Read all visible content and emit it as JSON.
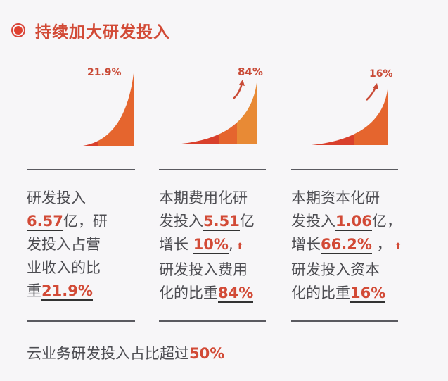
{
  "header": {
    "title": "持续加大研发投入"
  },
  "colors": {
    "accent": "#d24a36",
    "segment_dark": "#d9402c",
    "segment_mid": "#e5652e",
    "segment_light": "#e88a35",
    "rule": "#5a5a60",
    "text": "#4d4d52",
    "background": "#f7f6f8"
  },
  "columns": [
    {
      "chart_label": "21.9%",
      "lines": [
        {
          "parts": [
            {
              "t": "研发投入"
            }
          ]
        },
        {
          "parts": [
            {
              "t": "6.57",
              "hl": true
            },
            {
              "t": "亿，研"
            }
          ]
        },
        {
          "parts": [
            {
              "t": "发投入占营"
            }
          ]
        },
        {
          "parts": [
            {
              "t": "业收入的比"
            }
          ]
        },
        {
          "parts": [
            {
              "t": "重"
            },
            {
              "t": "21.9%",
              "hl": true
            }
          ]
        }
      ]
    },
    {
      "chart_label": "84%",
      "lines": [
        {
          "parts": [
            {
              "t": "本期费用化研"
            }
          ]
        },
        {
          "parts": [
            {
              "t": "发投入"
            },
            {
              "t": "5.51",
              "hl": true
            },
            {
              "t": "亿"
            }
          ]
        },
        {
          "parts": [
            {
              "t": "增长 "
            },
            {
              "t": "10%",
              "hl": true
            },
            {
              "t": ","
            },
            {
              "t": "⬆",
              "arrow": true
            }
          ]
        },
        {
          "parts": [
            {
              "t": "研发投入费用"
            }
          ]
        },
        {
          "parts": [
            {
              "t": "化的比重"
            },
            {
              "t": "84%",
              "hl": true
            }
          ]
        }
      ]
    },
    {
      "chart_label": "16%",
      "lines": [
        {
          "parts": [
            {
              "t": "本期资本化研"
            }
          ]
        },
        {
          "parts": [
            {
              "t": "发投入"
            },
            {
              "t": "1.06",
              "hl": true
            },
            {
              "t": "亿，"
            }
          ]
        },
        {
          "parts": [
            {
              "t": "增长"
            },
            {
              "t": "66.2%",
              "hl": true
            },
            {
              "t": " ，"
            },
            {
              "t": "⬆",
              "arrow": true
            }
          ]
        },
        {
          "parts": [
            {
              "t": "研发投入资本"
            }
          ]
        },
        {
          "parts": [
            {
              "t": "化的比重"
            },
            {
              "t": "16%",
              "hl": true
            }
          ]
        }
      ]
    }
  ],
  "footer": {
    "text": "云业务研发投入占比超过",
    "value": "50%"
  },
  "chart_data": [
    {
      "type": "area",
      "title": "研发投入占营业收入的比重",
      "value_label": "21.9%",
      "value": 21.9,
      "segments": 2,
      "annotation": "研发投入6.57亿"
    },
    {
      "type": "area",
      "title": "研发投入费用化的比重",
      "value_label": "84%",
      "value": 84,
      "segments": 3,
      "annotation": "本期费用化研发投入5.51亿，增长10%",
      "trend_arrow": true
    },
    {
      "type": "area",
      "title": "研发投入资本化的比重",
      "value_label": "16%",
      "value": 16,
      "segments": 2,
      "annotation": "本期资本化研发投入1.06亿，增长66.2%",
      "trend_arrow": true
    }
  ]
}
